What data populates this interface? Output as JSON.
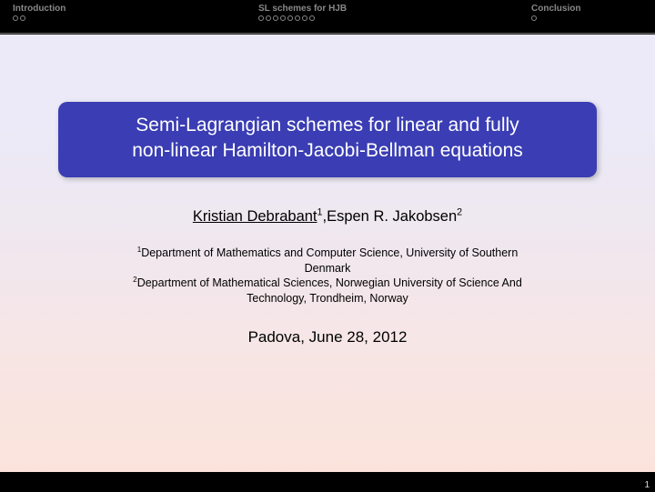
{
  "nav": {
    "sections": [
      {
        "label": "Introduction",
        "dots": 2
      },
      {
        "label": "SL schemes for HJB",
        "dots": 8
      },
      {
        "label": "Conclusion",
        "dots": 1
      }
    ]
  },
  "title": {
    "line1": "Semi-Lagrangian schemes for linear and fully",
    "line2": "non-linear Hamilton-Jacobi-Bellman equations",
    "bg_color": "#3a3db3",
    "text_color": "#ffffff",
    "fontsize": 21,
    "border_radius": 10
  },
  "authors": {
    "a1_name": "Kristian Debrabant",
    "a1_sup": "1",
    "sep": ",",
    "a2_name": "Espen R. Jakobsen",
    "a2_sup": "2",
    "fontsize": 16.5
  },
  "affiliations": {
    "a1_sup": "1",
    "a1_line1": "Department of Mathematics and Computer Science, University of Southern",
    "a1_line2": "Denmark",
    "a2_sup": "2",
    "a2_line1": "Department of Mathematical Sciences, Norwegian University of Science And",
    "a2_line2": "Technology, Trondheim, Norway",
    "fontsize": 12.5
  },
  "venue": {
    "text": "Padova, June 28, 2012",
    "fontsize": 17
  },
  "footer": {
    "page": "1"
  },
  "colors": {
    "topbar_bg": "#000000",
    "nav_text": "#888888",
    "body_gradient_top": "#eceaf8",
    "body_gradient_bottom": "#fce3db"
  }
}
